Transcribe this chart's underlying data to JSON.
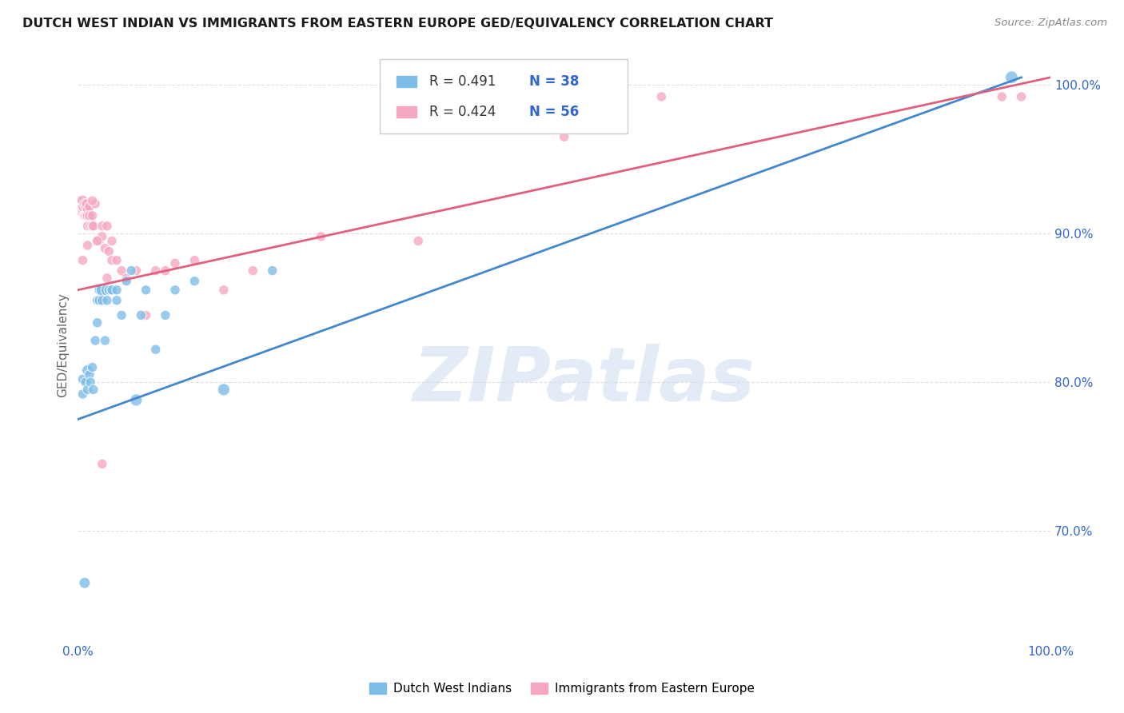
{
  "title": "DUTCH WEST INDIAN VS IMMIGRANTS FROM EASTERN EUROPE GED/EQUIVALENCY CORRELATION CHART",
  "source": "Source: ZipAtlas.com",
  "ylabel": "GED/Equivalency",
  "ytick_labels": [
    "70.0%",
    "80.0%",
    "90.0%",
    "100.0%"
  ],
  "ytick_values": [
    0.7,
    0.8,
    0.9,
    1.0
  ],
  "xlim": [
    0.0,
    1.0
  ],
  "ylim": [
    0.625,
    1.025
  ],
  "blue_R": "R = 0.491",
  "blue_N": "N = 38",
  "pink_R": "R = 0.424",
  "pink_N": "N = 56",
  "legend_label_blue": "Dutch West Indians",
  "legend_label_pink": "Immigrants from Eastern Europe",
  "blue_color": "#7dbde8",
  "pink_color": "#f5a8bf",
  "blue_line_color": "#4488cc",
  "pink_line_color": "#e06080",
  "blue_line_x0": 0.0,
  "blue_line_y0": 0.775,
  "blue_line_x1": 0.97,
  "blue_line_y1": 1.005,
  "pink_line_x0": 0.0,
  "pink_line_y0": 0.862,
  "pink_line_x1": 1.0,
  "pink_line_y1": 1.005,
  "blue_scatter_x": [
    0.005,
    0.005,
    0.008,
    0.01,
    0.01,
    0.012,
    0.013,
    0.015,
    0.016,
    0.018,
    0.02,
    0.02,
    0.022,
    0.022,
    0.025,
    0.025,
    0.028,
    0.03,
    0.03,
    0.032,
    0.035,
    0.035,
    0.04,
    0.04,
    0.045,
    0.05,
    0.055,
    0.06,
    0.065,
    0.07,
    0.08,
    0.09,
    0.1,
    0.12,
    0.15,
    0.2,
    0.96,
    0.007
  ],
  "blue_scatter_y": [
    0.802,
    0.792,
    0.8,
    0.808,
    0.795,
    0.805,
    0.8,
    0.81,
    0.795,
    0.828,
    0.84,
    0.855,
    0.862,
    0.855,
    0.862,
    0.855,
    0.828,
    0.862,
    0.855,
    0.862,
    0.862,
    0.862,
    0.862,
    0.855,
    0.845,
    0.868,
    0.875,
    0.788,
    0.845,
    0.862,
    0.822,
    0.845,
    0.862,
    0.868,
    0.795,
    0.875,
    1.005,
    0.665
  ],
  "blue_scatter_sizes": [
    80,
    80,
    80,
    100,
    80,
    80,
    80,
    80,
    80,
    80,
    80,
    80,
    80,
    80,
    120,
    80,
    80,
    120,
    80,
    80,
    80,
    80,
    80,
    80,
    80,
    80,
    80,
    120,
    80,
    80,
    80,
    80,
    80,
    80,
    120,
    80,
    130,
    100
  ],
  "pink_scatter_x": [
    0.0,
    0.002,
    0.003,
    0.004,
    0.005,
    0.005,
    0.006,
    0.006,
    0.007,
    0.007,
    0.008,
    0.008,
    0.009,
    0.009,
    0.01,
    0.01,
    0.01,
    0.012,
    0.012,
    0.013,
    0.015,
    0.015,
    0.016,
    0.018,
    0.02,
    0.022,
    0.025,
    0.025,
    0.028,
    0.03,
    0.032,
    0.035,
    0.035,
    0.04,
    0.045,
    0.05,
    0.06,
    0.07,
    0.08,
    0.09,
    0.1,
    0.12,
    0.15,
    0.18,
    0.25,
    0.35,
    0.5,
    0.6,
    0.95,
    0.97,
    0.005,
    0.01,
    0.015,
    0.02,
    0.025,
    0.03
  ],
  "pink_scatter_y": [
    0.92,
    0.918,
    0.915,
    0.918,
    0.922,
    0.916,
    0.918,
    0.912,
    0.92,
    0.912,
    0.918,
    0.912,
    0.92,
    0.912,
    0.916,
    0.912,
    0.905,
    0.918,
    0.912,
    0.905,
    0.912,
    0.905,
    0.905,
    0.92,
    0.895,
    0.895,
    0.905,
    0.898,
    0.89,
    0.905,
    0.888,
    0.895,
    0.882,
    0.882,
    0.875,
    0.87,
    0.875,
    0.845,
    0.875,
    0.875,
    0.88,
    0.882,
    0.862,
    0.875,
    0.898,
    0.895,
    0.965,
    0.992,
    0.992,
    0.992,
    0.882,
    0.892,
    0.922,
    0.895,
    0.745,
    0.87
  ],
  "pink_scatter_sizes": [
    200,
    100,
    90,
    80,
    100,
    80,
    100,
    80,
    80,
    80,
    80,
    80,
    80,
    80,
    80,
    80,
    80,
    80,
    80,
    80,
    80,
    80,
    80,
    80,
    80,
    80,
    80,
    80,
    80,
    80,
    80,
    80,
    80,
    80,
    80,
    80,
    80,
    80,
    80,
    80,
    80,
    80,
    80,
    80,
    80,
    80,
    80,
    80,
    80,
    80,
    80,
    80,
    80,
    80,
    80,
    80
  ],
  "watermark_text": "ZIPatlas",
  "background_color": "#ffffff",
  "grid_color": "#e0e0e0"
}
